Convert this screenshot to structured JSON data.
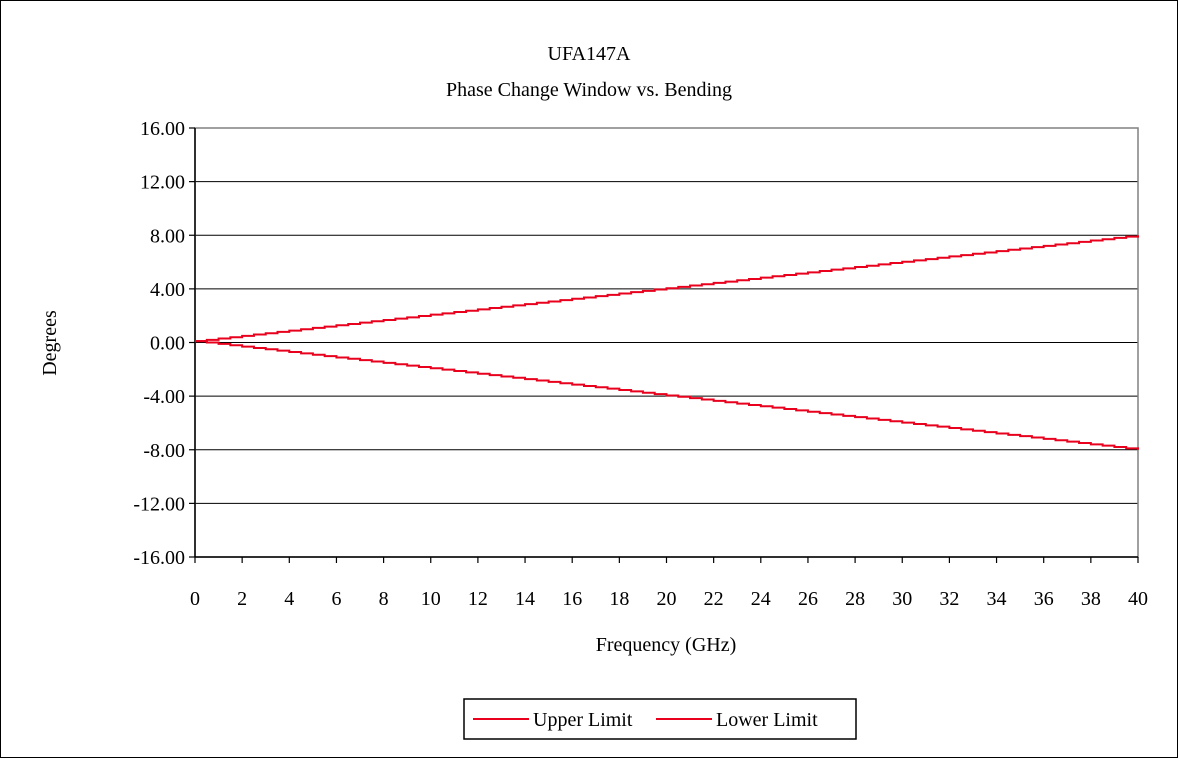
{
  "chart_data": {
    "type": "line",
    "title": "UFA147A",
    "subtitle": "Phase Change Window vs. Bending",
    "xlabel": "Frequency (GHz)",
    "ylabel": "Degrees",
    "xlim": [
      0,
      40
    ],
    "ylim": [
      -16,
      16
    ],
    "x_ticks": [
      "0",
      "2",
      "4",
      "6",
      "8",
      "10",
      "12",
      "14",
      "16",
      "18",
      "20",
      "22",
      "24",
      "26",
      "28",
      "30",
      "32",
      "34",
      "36",
      "38",
      "40"
    ],
    "y_ticks": [
      "16.00",
      "12.00",
      "8.00",
      "4.00",
      "0.00",
      "-4.00",
      "-8.00",
      "-12.00",
      "-16.00"
    ],
    "grid": "horizontal",
    "legend_position": "bottom",
    "series": [
      {
        "name": "Upper Limit",
        "color": "#e8001c",
        "x": [
          0,
          40
        ],
        "y": [
          0.1,
          8.0
        ]
      },
      {
        "name": "Lower Limit",
        "color": "#e8001c",
        "x": [
          0,
          40
        ],
        "y": [
          0.1,
          -8.0
        ]
      }
    ]
  }
}
